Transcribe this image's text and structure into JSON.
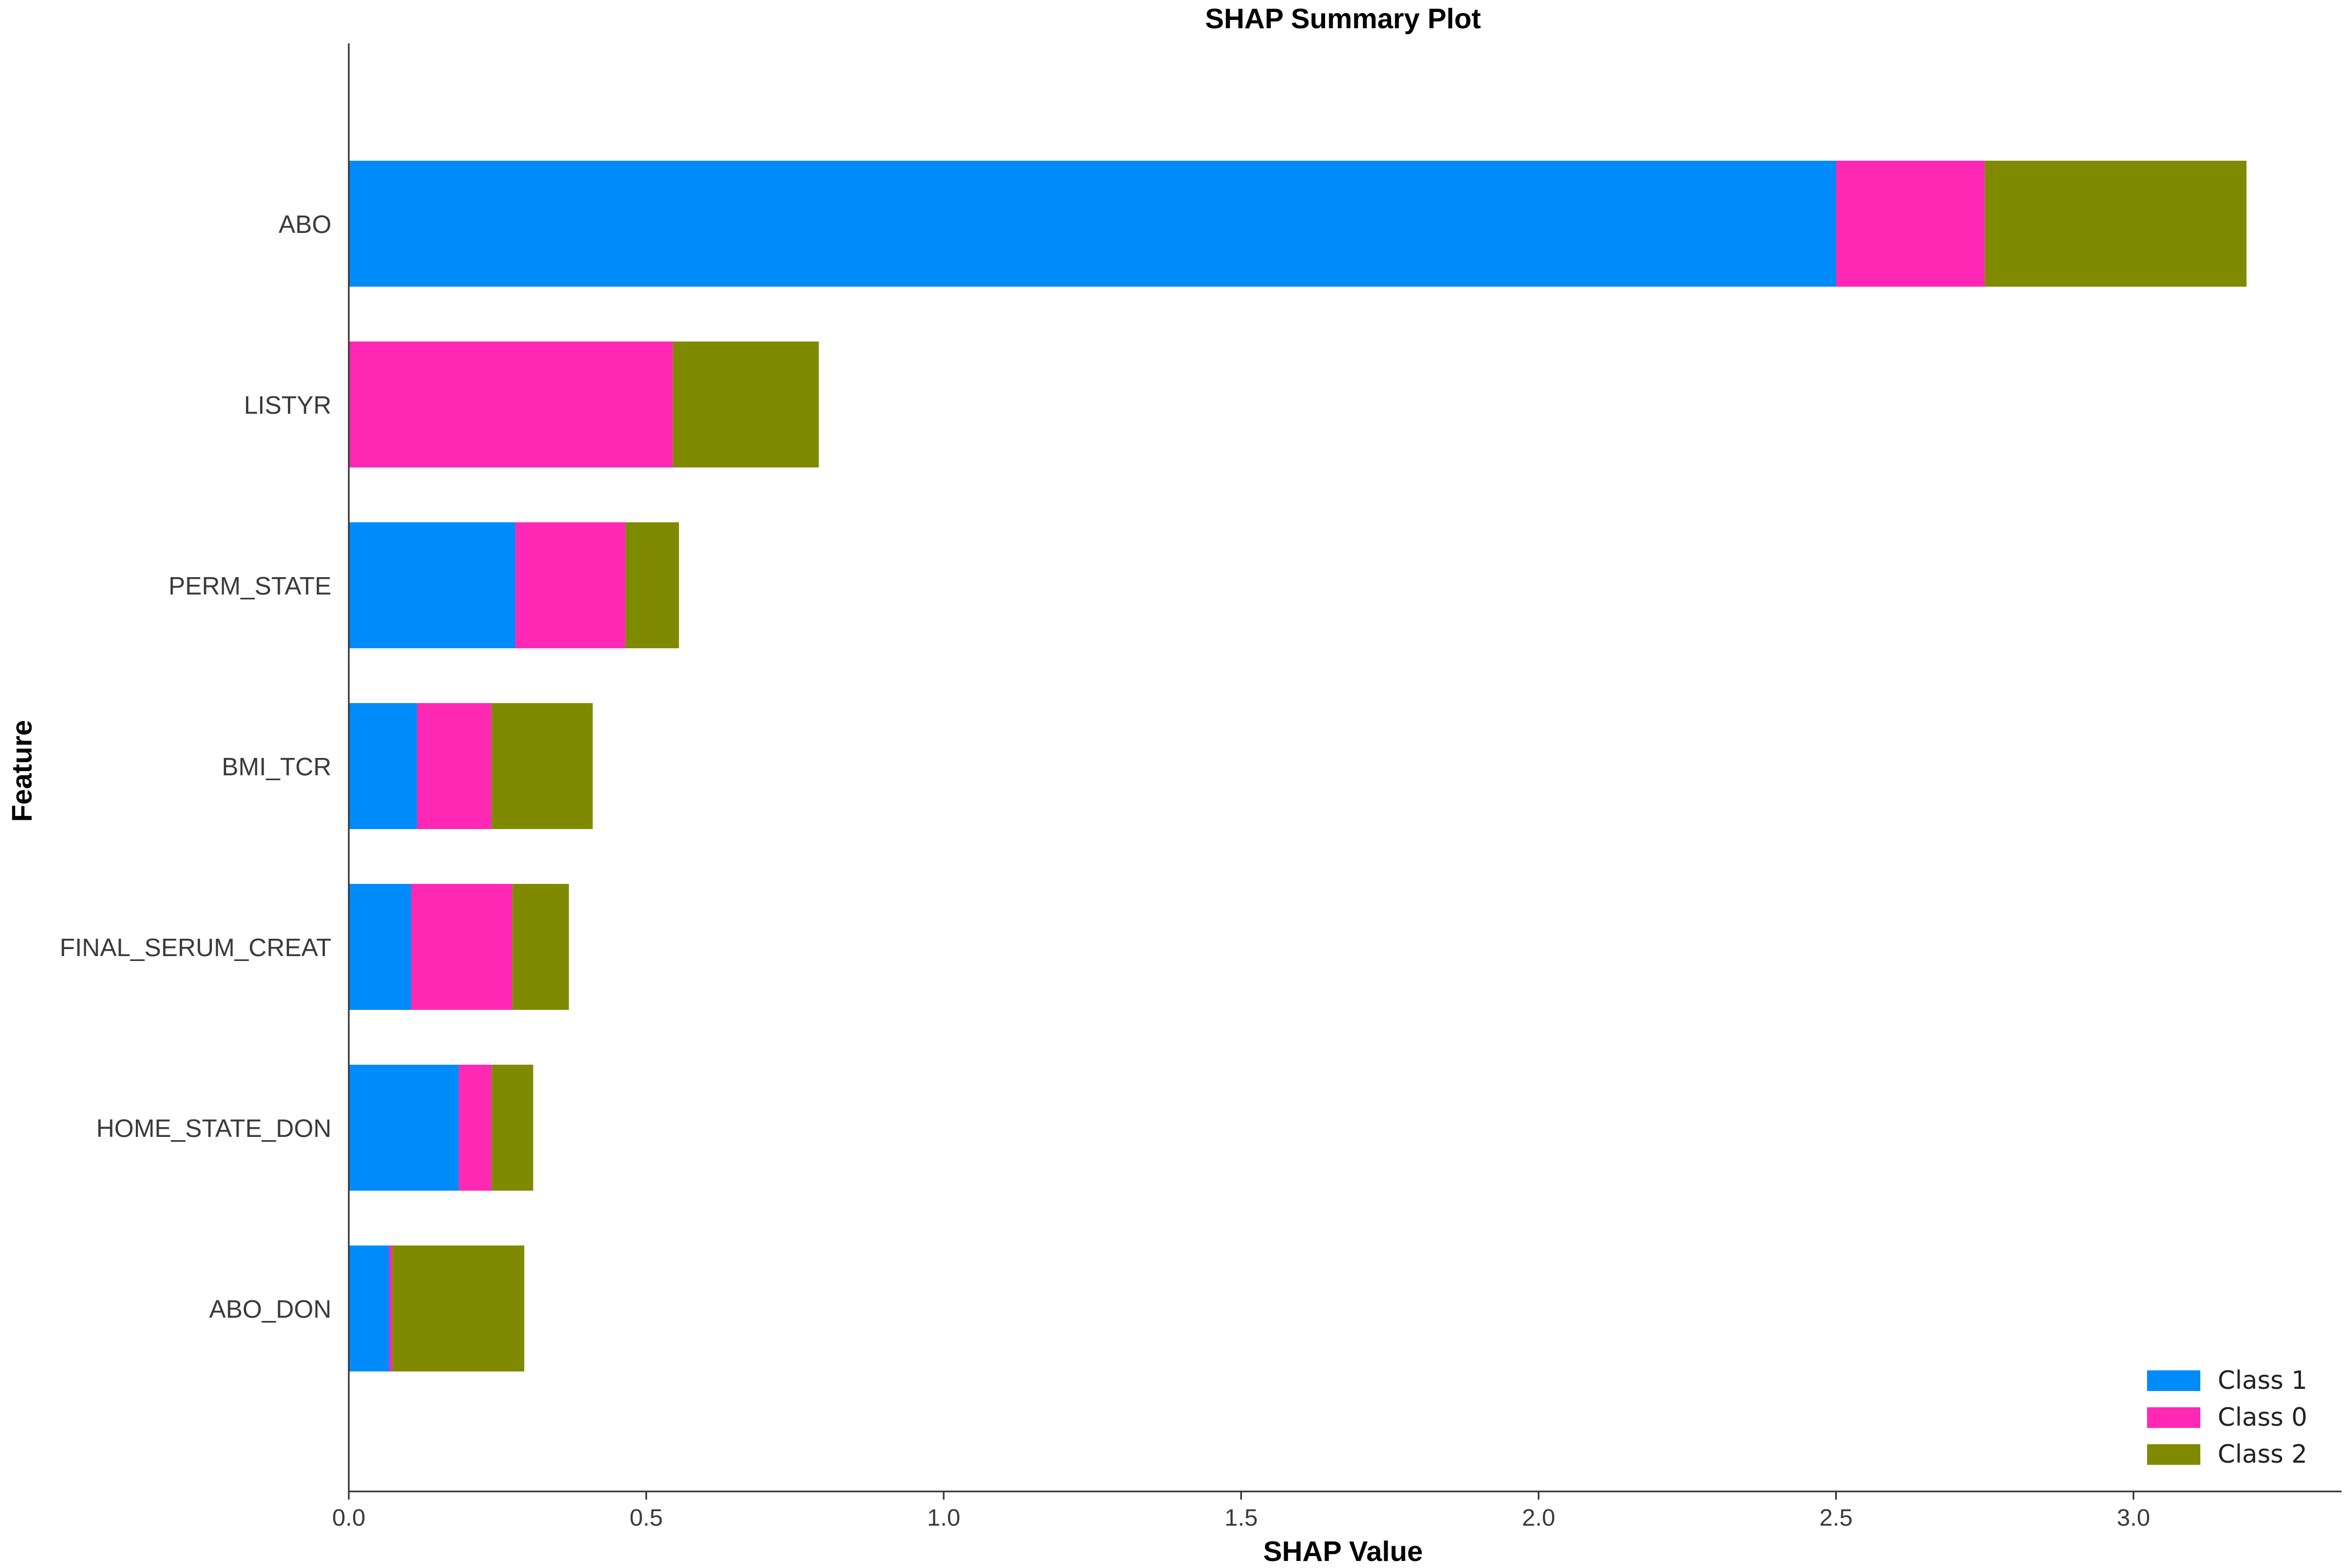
{
  "chart_data": {
    "type": "bar",
    "orientation": "horizontal",
    "stacked": true,
    "title": "SHAP Summary Plot",
    "xlabel": "SHAP Value",
    "ylabel": "Feature",
    "xlim": [
      0,
      3.35
    ],
    "xticks": [
      "0.0",
      "0.5",
      "1.0",
      "1.5",
      "2.0",
      "2.5",
      "3.0"
    ],
    "grid": false,
    "legend_position": "bottom-right",
    "categories": [
      "ABO",
      "LISTYR",
      "PERM_STATE",
      "BMI_TCR",
      "FINAL_SERUM_CREAT",
      "HOME_STATE_DON",
      "ABO_DON"
    ],
    "series": [
      {
        "name": "Class 1",
        "color": "#008bfb",
        "values": [
          2.5,
          0.0,
          0.28,
          0.115,
          0.105,
          0.185,
          0.068
        ]
      },
      {
        "name": "Class 0",
        "color": "#ff28b4",
        "values": [
          0.25,
          0.545,
          0.185,
          0.125,
          0.17,
          0.055,
          0.005
        ]
      },
      {
        "name": "Class 2",
        "color": "#808a00",
        "values": [
          0.44,
          0.245,
          0.09,
          0.17,
          0.095,
          0.07,
          0.222
        ]
      }
    ]
  }
}
